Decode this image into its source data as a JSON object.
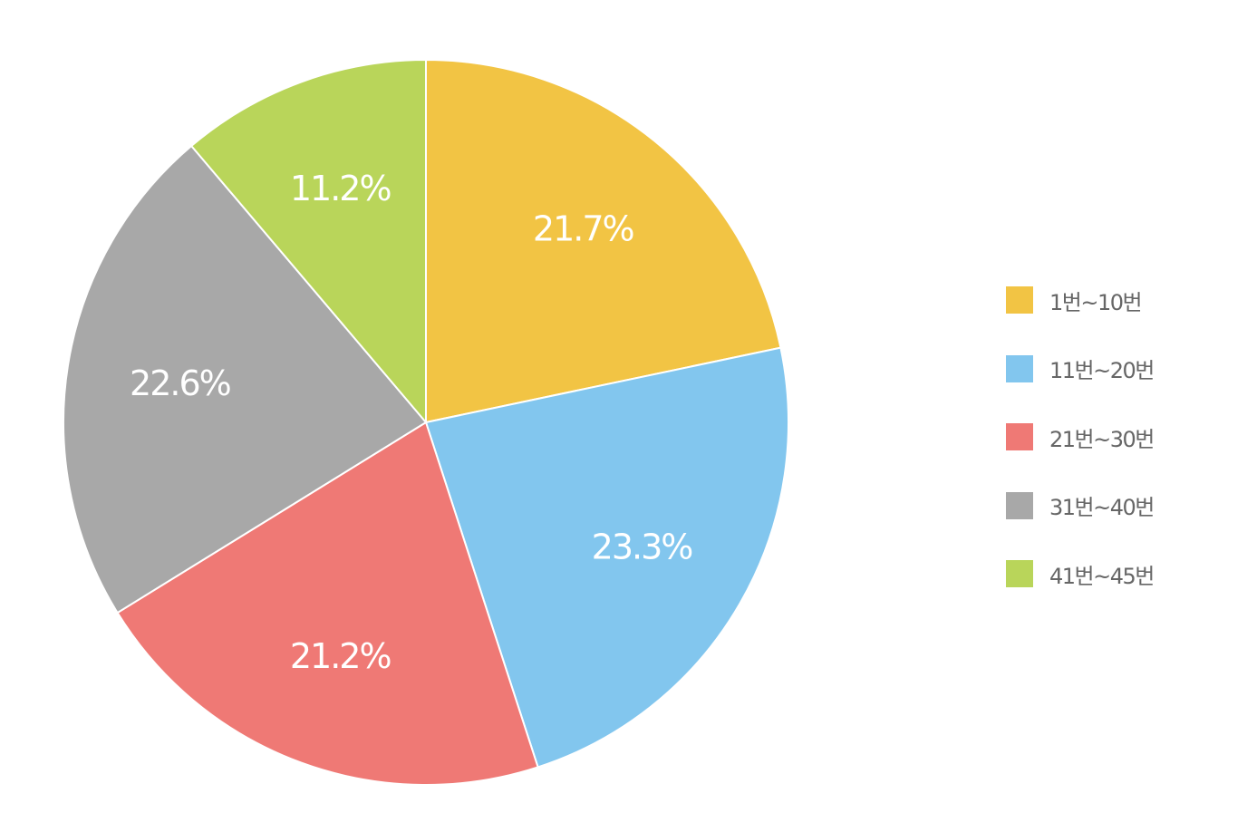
{
  "chart_data": {
    "type": "pie",
    "title": "",
    "start_angle": "12 o'clock",
    "direction": "clockwise",
    "slices": [
      {
        "label": "1번~10번",
        "value": 21.7,
        "display": "21.7%",
        "color": "#F2C444"
      },
      {
        "label": "11번~20번",
        "value": 23.3,
        "display": "23.3%",
        "color": "#82C6EE"
      },
      {
        "label": "21번~30번",
        "value": 21.2,
        "display": "21.2%",
        "color": "#EF7975"
      },
      {
        "label": "31번~40번",
        "value": 22.6,
        "display": "22.6%",
        "color": "#A8A8A8"
      },
      {
        "label": "41번~45번",
        "value": 11.2,
        "display": "11.2%",
        "color": "#B9D55A"
      }
    ],
    "legend_position": "right"
  }
}
